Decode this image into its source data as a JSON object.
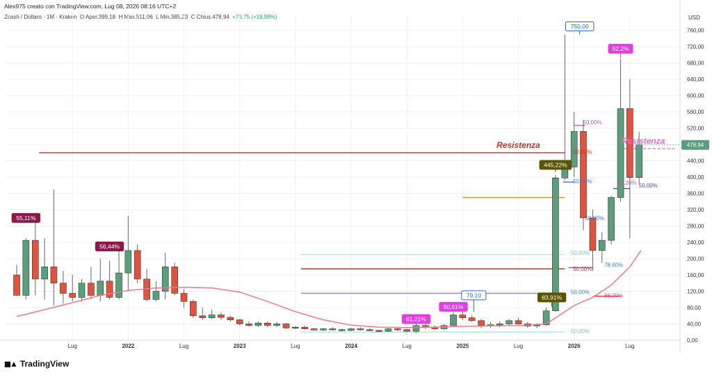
{
  "header": {
    "author_line": "Alex975 creato con TradingView.com, Lug 08, 2026 08:16 UTC+2",
    "symbol": "Zcash / Dollaro · 1M · Kraken",
    "open_label": "O",
    "open_value": "Aper.399,18",
    "high_label": "H",
    "high_value": "Max.511,06",
    "low_label": "L",
    "low_value": "Min.385,23",
    "close_label": "C",
    "close_value": "Chius.478,94",
    "change_value": "+79,75 (+19,98%)"
  },
  "footer": {
    "logo_text": "TradingView"
  },
  "colors": {
    "up": "#5a9e7c",
    "down": "#e0533f",
    "ma": "#ef7a85",
    "grid": "#eef0f4"
  },
  "chart_data": {
    "type": "candlestick",
    "currency_label": "USD",
    "ylim": [
      0,
      780
    ],
    "y_ticks": [
      "0,00",
      "40,00",
      "80,00",
      "120,00",
      "160,00",
      "200,00",
      "240,00",
      "280,00",
      "320,00",
      "360,00",
      "400,00",
      "440,00",
      "480,00",
      "520,00",
      "560,00",
      "600,00",
      "640,00",
      "680,00",
      "720,00",
      "760,00"
    ],
    "x_ticks": [
      "Lug",
      "2022",
      "Lug",
      "2023",
      "Lug",
      "2024",
      "Lug",
      "2025",
      "Lug",
      "2026",
      "Lug"
    ],
    "last_price_label": "478,94",
    "candles": [
      [
        2021.0,
        160,
        185,
        110,
        110
      ],
      [
        2021.083,
        110,
        250,
        100,
        245
      ],
      [
        2021.167,
        245,
        290,
        110,
        150
      ],
      [
        2021.25,
        150,
        250,
        100,
        180
      ],
      [
        2021.333,
        180,
        370,
        85,
        140
      ],
      [
        2021.417,
        140,
        170,
        90,
        115
      ],
      [
        2021.5,
        115,
        160,
        95,
        105
      ],
      [
        2021.583,
        105,
        150,
        95,
        140
      ],
      [
        2021.667,
        140,
        180,
        100,
        110
      ],
      [
        2021.75,
        110,
        200,
        95,
        145
      ],
      [
        2021.833,
        145,
        195,
        100,
        105
      ],
      [
        2021.917,
        105,
        230,
        100,
        165
      ],
      [
        2022.0,
        165,
        305,
        120,
        220
      ],
      [
        2022.083,
        220,
        235,
        140,
        150
      ],
      [
        2022.167,
        150,
        175,
        95,
        100
      ],
      [
        2022.25,
        100,
        145,
        95,
        120
      ],
      [
        2022.333,
        120,
        215,
        100,
        180
      ],
      [
        2022.417,
        180,
        190,
        110,
        115
      ],
      [
        2022.5,
        115,
        125,
        80,
        95
      ],
      [
        2022.583,
        95,
        100,
        55,
        60
      ],
      [
        2022.667,
        60,
        80,
        50,
        55
      ],
      [
        2022.75,
        55,
        75,
        52,
        62
      ],
      [
        2022.833,
        62,
        68,
        50,
        56
      ],
      [
        2022.917,
        56,
        60,
        46,
        50
      ],
      [
        2023.0,
        50,
        52,
        36,
        40
      ],
      [
        2023.083,
        40,
        46,
        34,
        36
      ],
      [
        2023.167,
        36,
        46,
        33,
        42
      ],
      [
        2023.25,
        42,
        46,
        32,
        36
      ],
      [
        2023.333,
        36,
        45,
        32,
        40
      ],
      [
        2023.417,
        40,
        42,
        28,
        30
      ],
      [
        2023.5,
        30,
        34,
        27,
        32
      ],
      [
        2023.583,
        32,
        36,
        26,
        28
      ],
      [
        2023.667,
        28,
        30,
        25,
        25
      ],
      [
        2023.75,
        25,
        30,
        23,
        28
      ],
      [
        2023.833,
        28,
        32,
        24,
        26
      ],
      [
        2023.917,
        26,
        28,
        22,
        24
      ],
      [
        2024.0,
        24,
        30,
        22,
        28
      ],
      [
        2024.083,
        28,
        32,
        24,
        26
      ],
      [
        2024.167,
        26,
        30,
        22,
        24
      ],
      [
        2024.25,
        24,
        26,
        20,
        22
      ],
      [
        2024.333,
        22,
        30,
        20,
        28
      ],
      [
        2024.417,
        28,
        32,
        22,
        26
      ],
      [
        2024.5,
        26,
        28,
        20,
        22
      ],
      [
        2024.583,
        22,
        40,
        18,
        36
      ],
      [
        2024.667,
        36,
        42,
        28,
        32
      ],
      [
        2024.75,
        32,
        36,
        26,
        28
      ],
      [
        2024.833,
        28,
        40,
        26,
        36
      ],
      [
        2024.917,
        36,
        68,
        34,
        62
      ],
      [
        2025.0,
        62,
        70,
        50,
        55
      ],
      [
        2025.083,
        55,
        62,
        45,
        48
      ],
      [
        2025.167,
        48,
        52,
        30,
        36
      ],
      [
        2025.25,
        36,
        44,
        30,
        38
      ],
      [
        2025.333,
        38,
        46,
        32,
        40
      ],
      [
        2025.417,
        40,
        52,
        36,
        48
      ],
      [
        2025.5,
        48,
        55,
        38,
        40
      ],
      [
        2025.583,
        40,
        45,
        30,
        35
      ],
      [
        2025.667,
        35,
        42,
        30,
        38
      ],
      [
        2025.75,
        38,
        80,
        35,
        72
      ],
      [
        2025.833,
        72,
        405,
        70,
        398
      ],
      [
        2025.917,
        398,
        750,
        392,
        425
      ],
      [
        2026.0,
        425,
        560,
        400,
        512
      ],
      [
        2026.083,
        512,
        540,
        270,
        300
      ],
      [
        2026.167,
        300,
        320,
        170,
        220
      ],
      [
        2026.25,
        220,
        265,
        190,
        245
      ],
      [
        2026.333,
        245,
        355,
        235,
        350
      ],
      [
        2026.417,
        350,
        690,
        340,
        568
      ],
      [
        2026.5,
        568,
        640,
        250,
        399
      ],
      [
        2026.583,
        399,
        511,
        385,
        479
      ]
    ],
    "ma_line": [
      [
        2021.0,
        58
      ],
      [
        2021.25,
        75
      ],
      [
        2021.5,
        92
      ],
      [
        2021.75,
        110
      ],
      [
        2022.0,
        122
      ],
      [
        2022.25,
        128
      ],
      [
        2022.5,
        130
      ],
      [
        2022.75,
        128
      ],
      [
        2023.0,
        118
      ],
      [
        2023.25,
        95
      ],
      [
        2023.5,
        70
      ],
      [
        2023.75,
        50
      ],
      [
        2024.0,
        37
      ],
      [
        2024.25,
        32
      ],
      [
        2024.5,
        31
      ],
      [
        2024.75,
        32
      ],
      [
        2025.0,
        34
      ],
      [
        2025.25,
        35
      ],
      [
        2025.5,
        36
      ],
      [
        2025.75,
        40
      ],
      [
        2025.917,
        70
      ],
      [
        2026.0,
        85
      ],
      [
        2026.167,
        105
      ],
      [
        2026.333,
        135
      ],
      [
        2026.5,
        180
      ],
      [
        2026.6,
        220
      ]
    ],
    "hlines": [
      {
        "y": 460,
        "x1": 2021.2,
        "x2": 2025.917,
        "color": "#c9302c",
        "label": "Resistenza",
        "label_x": 2025.5
      },
      {
        "y": 350,
        "x1": 2025.0,
        "x2": 2025.917,
        "color": "#f08a24"
      },
      {
        "y": 175,
        "x1": 2023.55,
        "x2": 2025.917,
        "color": "#c9302c"
      },
      {
        "y": 115,
        "x1": 2023.55,
        "x2": 2025.917,
        "color": "#8c85c9"
      },
      {
        "y": 210,
        "x1": 2023.55,
        "x2": 2025.917,
        "color": "#bfe6e0"
      },
      {
        "y": 20,
        "x1": 2023.55,
        "x2": 2025.917,
        "color": "#bfe6e0"
      },
      {
        "y": 470,
        "x1": 2026.4,
        "x2": 2026.9,
        "color": "#e06ec0",
        "label": "Resistenza",
        "label_x": 2026.62,
        "dashed": true
      },
      {
        "y": 108,
        "x1": 2026.17,
        "x2": 2026.42,
        "color": "#c9302c"
      },
      {
        "y": 178,
        "x1": 2025.95,
        "x2": 2026.17,
        "color": "#3a7bd5"
      },
      {
        "y": 388,
        "x1": 2025.9,
        "x2": 2026.0,
        "color": "#3a7bd5"
      },
      {
        "y": 372,
        "x1": 2026.35,
        "x2": 2026.5,
        "color": "#4a46b5"
      },
      {
        "y": 527,
        "x1": 2026.0,
        "x2": 2026.1,
        "color": "#c060a0"
      }
    ],
    "fib_labels": [
      {
        "x": 2026.08,
        "y": 535,
        "text": "50,00%",
        "color": "#c060a0"
      },
      {
        "x": 2025.99,
        "y": 462,
        "text": "50,00%",
        "color": "#c9302c"
      },
      {
        "x": 2025.99,
        "y": 390,
        "text": "50,00%",
        "color": "#3a7bd5"
      },
      {
        "x": 2025.97,
        "y": 215,
        "text": "50,00%",
        "color": "#7cc8c0"
      },
      {
        "x": 2025.99,
        "y": 175,
        "text": "50,00%",
        "color": "#c9302c"
      },
      {
        "x": 2025.97,
        "y": 118,
        "text": "50,00%",
        "color": "#3a7bd5"
      },
      {
        "x": 2025.97,
        "y": 22,
        "text": "50,00%",
        "color": "#7cc8c0"
      },
      {
        "x": 2026.1,
        "y": 300,
        "text": "50,00%",
        "color": "#3a7bd5"
      },
      {
        "x": 2026.27,
        "y": 185,
        "text": "78,60%",
        "color": "#3a7bd5"
      },
      {
        "x": 2026.27,
        "y": 110,
        "text": "88,20%",
        "color": "#c060a0"
      },
      {
        "x": 2026.39,
        "y": 387,
        "text": "88,20%",
        "color": "#c060a0"
      },
      {
        "x": 2026.58,
        "y": 380,
        "text": "50,00%",
        "color": "#4a46b5"
      }
    ],
    "callouts": [
      {
        "x": 2021.083,
        "y": 300,
        "text": "55,11%",
        "bg": "#8b1a4a",
        "fg": "#ffffff",
        "anchor_y": 290
      },
      {
        "x": 2021.833,
        "y": 230,
        "text": "56,44%",
        "bg": "#8b1a4a",
        "fg": "#ffffff",
        "anchor_y": 220
      },
      {
        "x": 2024.583,
        "y": 52,
        "text": "61,21%",
        "bg": "#e040e0",
        "fg": "#ffffff",
        "anchor_y": 42
      },
      {
        "x": 2024.917,
        "y": 82,
        "text": "60,81%",
        "bg": "#e040e0",
        "fg": "#ffffff",
        "anchor_y": 72
      },
      {
        "x": 2025.1,
        "y": 110,
        "text": "79,10",
        "bg": "#ffffff",
        "fg": "#2a63c4",
        "border": "#2a63c4",
        "anchor_y": 70
      },
      {
        "x": 2025.8,
        "y": 105,
        "text": "83,91%",
        "bg": "#5a5400",
        "fg": "#ffffff",
        "anchor_y": 82
      },
      {
        "x": 2025.833,
        "y": 430,
        "text": "445,22%",
        "bg": "#5a5400",
        "fg": "#ffffff",
        "anchor_y": 412
      },
      {
        "x": 2026.05,
        "y": 770,
        "text": "750,00",
        "bg": "#ffffff",
        "fg": "#2a63c4",
        "border": "#2a63c4",
        "anchor_y": 750
      },
      {
        "x": 2026.417,
        "y": 715,
        "text": "62,2%",
        "bg": "#e040e0",
        "fg": "#ffffff",
        "anchor_y": 692
      }
    ]
  }
}
